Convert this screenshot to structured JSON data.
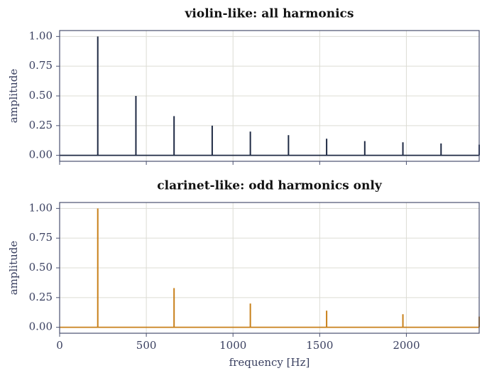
{
  "chart_data": [
    {
      "type": "stem",
      "title": "violin-like: all harmonics",
      "ylabel": "amplitude",
      "x": [
        220,
        440,
        660,
        880,
        1100,
        1320,
        1540,
        1760,
        1980,
        2200,
        2420
      ],
      "values": [
        1.0,
        0.5,
        0.33,
        0.25,
        0.2,
        0.17,
        0.14,
        0.12,
        0.11,
        0.1,
        0.09
      ],
      "color": "#1f2a44",
      "xlim": [
        0,
        2420
      ],
      "ylim": [
        -0.05,
        1.05
      ],
      "yticks": [
        {
          "value": 0,
          "label": "0.00"
        },
        {
          "value": 0.25,
          "label": "0.25"
        },
        {
          "value": 0.5,
          "label": "0.50"
        },
        {
          "value": 0.75,
          "label": "0.75"
        },
        {
          "value": 1,
          "label": "1.00"
        }
      ],
      "grid": true
    },
    {
      "type": "stem",
      "title": "clarinet-like: odd harmonics only",
      "ylabel": "amplitude",
      "xlabel": "frequency  [Hz]",
      "x": [
        220,
        660,
        1100,
        1540,
        1980,
        2420
      ],
      "values": [
        1.0,
        0.33,
        0.2,
        0.14,
        0.11,
        0.09
      ],
      "color": "#c8801a",
      "xlim": [
        0,
        2420
      ],
      "ylim": [
        -0.05,
        1.05
      ],
      "xticks": [
        0,
        500,
        1000,
        1500,
        2000
      ],
      "yticks": [
        {
          "value": 0,
          "label": "0.00"
        },
        {
          "value": 0.25,
          "label": "0.25"
        },
        {
          "value": 0.5,
          "label": "0.50"
        },
        {
          "value": 0.75,
          "label": "0.75"
        },
        {
          "value": 1,
          "label": "1.00"
        }
      ],
      "grid": true
    }
  ]
}
